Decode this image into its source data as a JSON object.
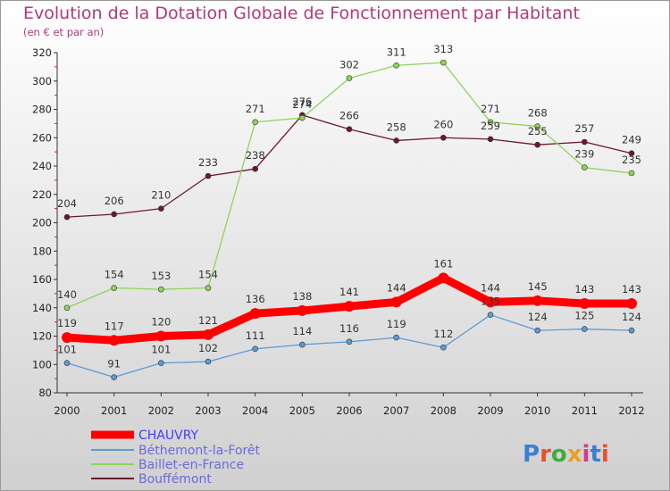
{
  "chart_data": {
    "type": "line",
    "title": "Evolution de la Dotation Globale de Fonctionnement par Habitant",
    "subtitle": "(en € et par an)",
    "x": [
      "2000",
      "2001",
      "2002",
      "2003",
      "2004",
      "2005",
      "2006",
      "2007",
      "2008",
      "2009",
      "2010",
      "2011",
      "2012"
    ],
    "ylim": [
      80,
      320
    ],
    "yticks": [
      80,
      100,
      120,
      140,
      160,
      180,
      200,
      220,
      240,
      260,
      280,
      300,
      320
    ],
    "grid": false,
    "legend_position": "bottom-left",
    "series": [
      {
        "name": "CHAUVRY",
        "color": "#ff0000",
        "values": [
          119,
          117,
          120,
          121,
          136,
          138,
          141,
          144,
          161,
          144,
          145,
          143,
          143
        ]
      },
      {
        "name": "Béthemont-la-Forêt",
        "color": "#5b9bd5",
        "values": [
          101,
          91,
          101,
          102,
          111,
          114,
          116,
          119,
          112,
          135,
          124,
          125,
          124
        ]
      },
      {
        "name": "Baillet-en-France",
        "color": "#8ed35a",
        "values": [
          140,
          154,
          153,
          154,
          271,
          274,
          302,
          311,
          313,
          271,
          268,
          239,
          235
        ]
      },
      {
        "name": "Bouffémont",
        "color": "#6b1a2a",
        "values": [
          204,
          206,
          210,
          233,
          238,
          276,
          266,
          258,
          260,
          259,
          255,
          257,
          249
        ]
      }
    ],
    "label_series": {
      "CHAUVRY": [
        119,
        117,
        120,
        121,
        136,
        138,
        141,
        144,
        161,
        144,
        145,
        143,
        143
      ],
      "Béthemont-la-Forêt": [
        101,
        91,
        101,
        102,
        111,
        114,
        116,
        119,
        112,
        135,
        124,
        125,
        124
      ],
      "Baillet-en-France": [
        140,
        154,
        153,
        154,
        271,
        274,
        302,
        311,
        313,
        271,
        268,
        239,
        235
      ],
      "Bouffémont": [
        204,
        206,
        210,
        233,
        238,
        276,
        266,
        258,
        260,
        259,
        255,
        257,
        249
      ]
    }
  },
  "logo": {
    "text": "Proxiti"
  }
}
